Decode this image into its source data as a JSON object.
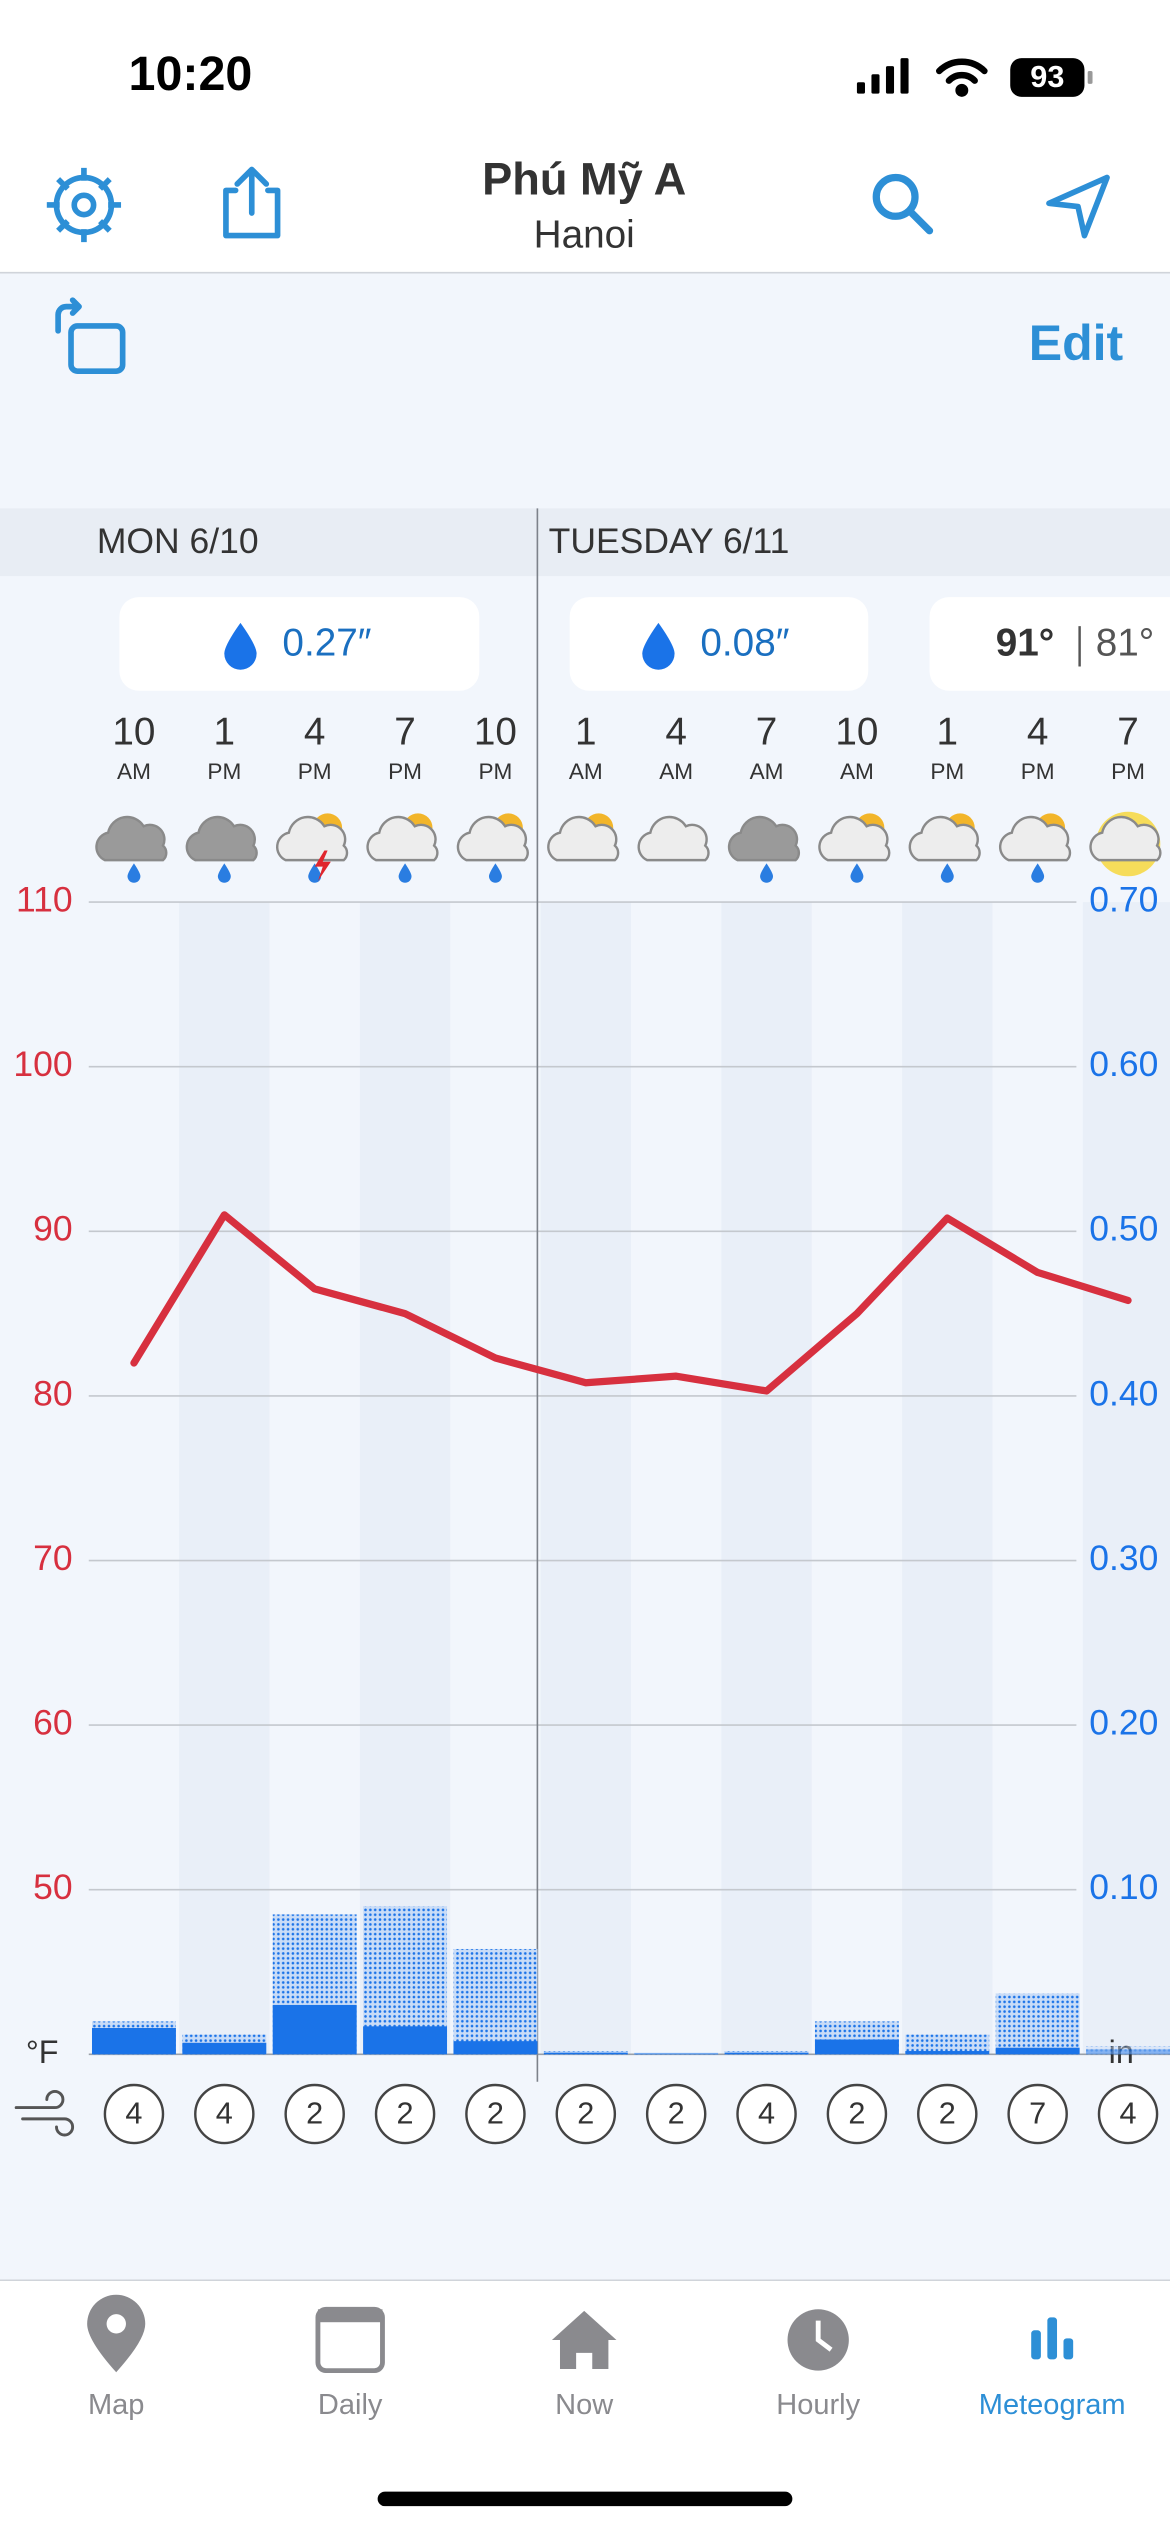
{
  "status_bar": {
    "time": "10:20",
    "battery": "93"
  },
  "header": {
    "title": "Phú Mỹ A",
    "subtitle": "Hanoi"
  },
  "toolbar": {
    "edit": "Edit"
  },
  "days": [
    "MON 6/10",
    "TUESDAY 6/11"
  ],
  "day_summaries": [
    {
      "precip": "0.27″"
    },
    {
      "precip": "0.08″"
    },
    {
      "high": "91°",
      "low": "81°"
    }
  ],
  "chart_data": {
    "type": "line",
    "categories": [
      "10",
      "1",
      "4",
      "7",
      "10",
      "1",
      "4",
      "7",
      "10",
      "1",
      "4",
      "7"
    ],
    "periods": [
      "AM",
      "PM",
      "PM",
      "PM",
      "PM",
      "AM",
      "AM",
      "AM",
      "AM",
      "PM",
      "PM",
      "PM"
    ],
    "series": [
      {
        "type": "line",
        "color": "#d7303f",
        "values": [
          82,
          91,
          86.5,
          85,
          82.3,
          80.8,
          81.2,
          80.3,
          85,
          90.8,
          87.5,
          85.8
        ]
      },
      {
        "type": "bar",
        "axis": "y2",
        "style": "dotted",
        "color": "#1a73e8",
        "values": [
          0.02,
          0.012,
          0.085,
          0.09,
          0.064,
          0.002,
          0.001,
          0.002,
          0.02,
          0.012,
          0.037,
          0.005
        ]
      },
      {
        "type": "bar",
        "axis": "y2",
        "style": "solid",
        "color": "#1a73e8",
        "values": [
          0.016,
          0.007,
          0.03,
          0.017,
          0.008,
          0.001,
          0.0005,
          0.001,
          0.009,
          0.002,
          0.004,
          0.003
        ]
      }
    ],
    "ylim": [
      40,
      110
    ],
    "yticks": [
      50,
      60,
      70,
      80,
      90,
      100,
      110
    ],
    "ylabel": "°F",
    "ycolor": "#d7303f",
    "y2lim": [
      0,
      0.7
    ],
    "y2ticks": [
      {
        "value": 0.1,
        "label": "0.10"
      },
      {
        "value": 0.2,
        "label": "0.20"
      },
      {
        "value": 0.3,
        "label": "0.30"
      },
      {
        "value": 0.4,
        "label": "0.40"
      },
      {
        "value": 0.5,
        "label": "0.50"
      },
      {
        "value": 0.6,
        "label": "0.60"
      },
      {
        "value": 0.7,
        "label": "0.70"
      }
    ],
    "y2label": "in",
    "y2color": "#1a73e8",
    "grid": true,
    "wind": [
      4,
      4,
      2,
      2,
      2,
      2,
      2,
      4,
      2,
      2,
      7,
      4
    ]
  },
  "tabs": [
    {
      "label": "Map"
    },
    {
      "label": "Daily"
    },
    {
      "label": "Now"
    },
    {
      "label": "Hourly"
    },
    {
      "label": "Meteogram",
      "active": true
    }
  ]
}
